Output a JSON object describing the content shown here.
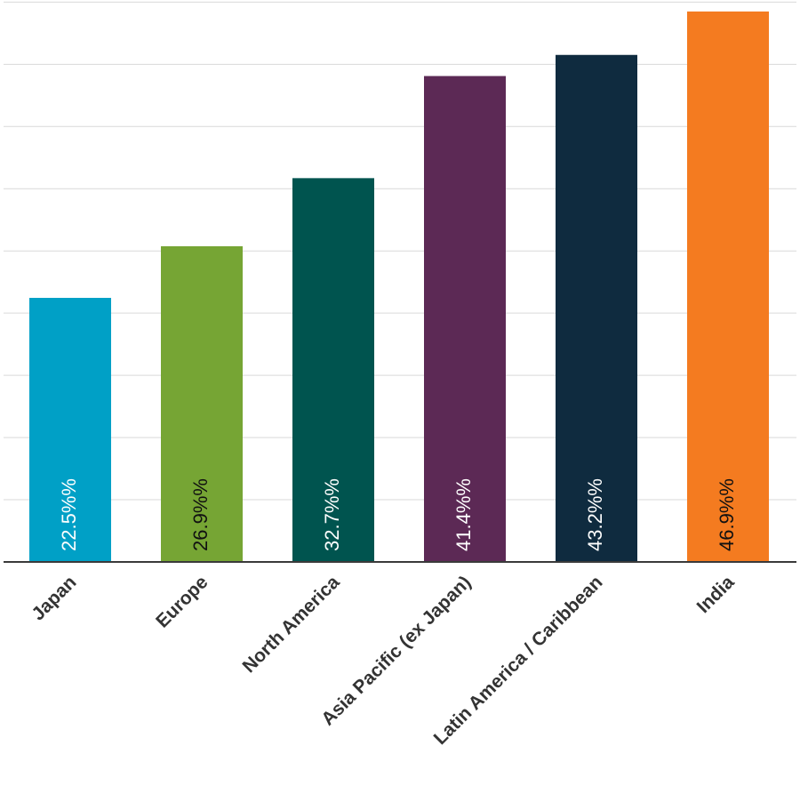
{
  "chart_data": {
    "type": "bar",
    "title": "",
    "xlabel": "",
    "ylabel": "",
    "ylim": [
      0,
      48
    ],
    "grid": true,
    "gridlines": [
      5.3,
      10.6,
      15.9,
      21.2,
      26.5,
      31.8,
      37.1,
      42.4,
      47.7
    ],
    "categories": [
      "Japan",
      "Europe",
      "North America",
      "Asia Pacific (ex Japan)",
      "Latin America / Caribbean",
      "India"
    ],
    "values": [
      22.5,
      26.9,
      32.7,
      41.4,
      43.2,
      46.9
    ],
    "value_labels": [
      "22.5%%",
      "26.9%%",
      "32.7%%",
      "41.4%%",
      "43.2%%",
      "46.9%%"
    ],
    "colors": [
      "#00a0c6",
      "#76a534",
      "#00544f",
      "#5c2955",
      "#0f2b3f",
      "#f47b20"
    ],
    "label_colors": [
      "#ffffff",
      "#111111",
      "#ffffff",
      "#ffffff",
      "#ffffff",
      "#111111"
    ]
  }
}
